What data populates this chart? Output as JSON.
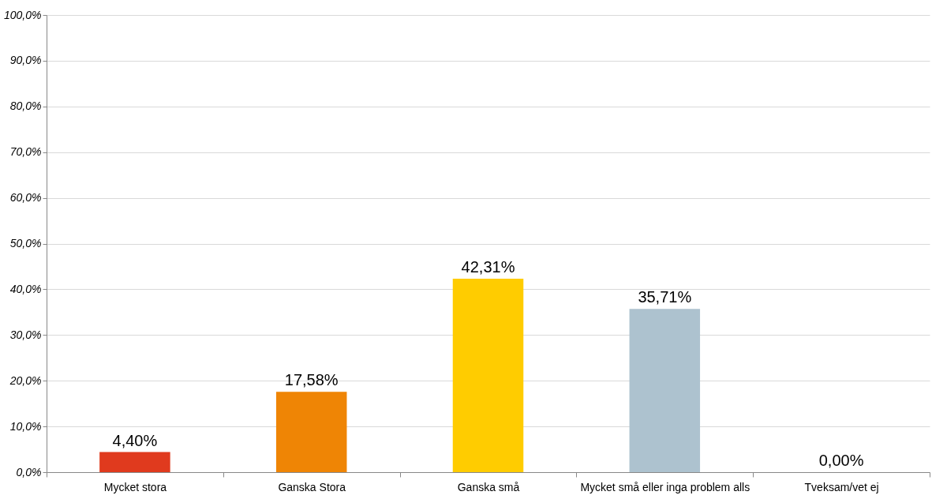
{
  "chart_data": {
    "type": "bar",
    "categories": [
      "Mycket stora",
      "Ganska Stora",
      "Ganska små",
      "Mycket små eller inga problem alls",
      "Tveksam/vet ej"
    ],
    "values": [
      4.4,
      17.58,
      42.31,
      35.71,
      0.0
    ],
    "value_labels": [
      "4,40%",
      "17,58%",
      "42,31%",
      "35,71%",
      "0,00%"
    ],
    "colors": [
      "#e03a1e",
      "#ef8505",
      "#ffcc00",
      "#adc2cf",
      "#4f81bd"
    ],
    "ylim": [
      0,
      100
    ],
    "yticks": [
      {
        "value": 0,
        "label": "0,0%"
      },
      {
        "value": 10,
        "label": "10,0%"
      },
      {
        "value": 20,
        "label": "20,0%"
      },
      {
        "value": 30,
        "label": "30,0%"
      },
      {
        "value": 40,
        "label": "40,0%"
      },
      {
        "value": 50,
        "label": "50,0%"
      },
      {
        "value": 60,
        "label": "60,0%"
      },
      {
        "value": 70,
        "label": "70,0%"
      },
      {
        "value": 80,
        "label": "80,0%"
      },
      {
        "value": 90,
        "label": "90,0%"
      },
      {
        "value": 100,
        "label": "100,0%"
      }
    ],
    "grid": "y"
  }
}
